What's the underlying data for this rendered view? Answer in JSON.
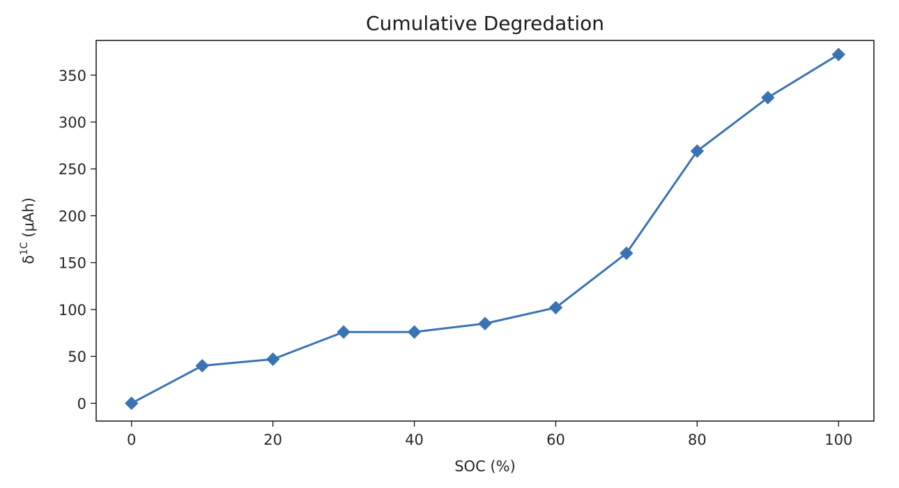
{
  "chart_data": {
    "type": "line",
    "title": "Cumulative Degredation",
    "xlabel": "SOC (%)",
    "ylabel": {
      "prefix": "δ",
      "superscript": "1C",
      "suffix": " (μAh)"
    },
    "xlim": [
      -5,
      105
    ],
    "ylim": [
      -19,
      387
    ],
    "xticks": [
      0,
      20,
      40,
      60,
      80,
      100
    ],
    "yticks": [
      0,
      50,
      100,
      150,
      200,
      250,
      300,
      350
    ],
    "grid": false,
    "legend": "none",
    "series": [
      {
        "color": "#3a73b3",
        "marker": "diamond",
        "x": [
          0,
          10,
          20,
          30,
          40,
          50,
          60,
          70,
          80,
          90,
          100
        ],
        "y": [
          0,
          40,
          47,
          76,
          76,
          85,
          102,
          160,
          269,
          326,
          372
        ]
      }
    ]
  }
}
